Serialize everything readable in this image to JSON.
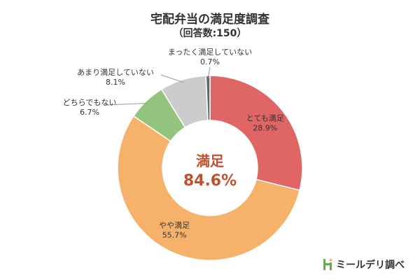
{
  "title": "宅配弁当の満足度調査",
  "subtitle": "（回答数:150）",
  "center": {
    "label": "満足",
    "value": "84.6%"
  },
  "source": "ミールデリ調べ",
  "chart_data": {
    "type": "pie",
    "style": "donut",
    "title": "宅配弁当の満足度調査",
    "subtitle": "（回答数:150）",
    "start": "12 o'clock, clockwise",
    "slices": [
      {
        "label": "とても満足",
        "value": 28.9,
        "value_text": "28.9%",
        "color": "#e06666"
      },
      {
        "label": "やや満足",
        "value": 55.7,
        "value_text": "55.7%",
        "color": "#f6b26b"
      },
      {
        "label": "どちらでもない",
        "value": 6.7,
        "value_text": "6.7%",
        "color": "#93c47d"
      },
      {
        "label": "あまり満足していない",
        "value": 8.1,
        "value_text": "8.1%",
        "color": "#cccccc"
      },
      {
        "label": "まったく満足していない",
        "value": 0.7,
        "value_text": "0.7%",
        "color": "#666666"
      }
    ]
  }
}
